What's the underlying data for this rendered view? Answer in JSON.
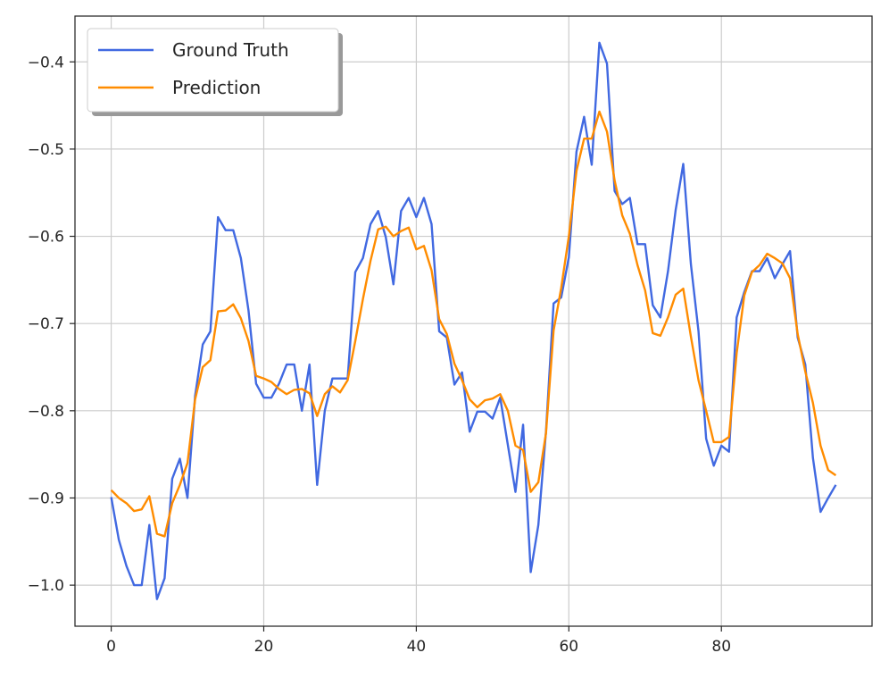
{
  "chart_data": {
    "type": "line",
    "title": "",
    "xlabel": "",
    "ylabel": "",
    "xlim": [
      -4.75,
      99.75
    ],
    "ylim": [
      -1.047,
      -0.3475
    ],
    "grid": true,
    "legend": {
      "placement": "top-left",
      "shadow": true
    },
    "x_ticks": [
      0,
      20,
      40,
      60,
      80
    ],
    "x_tick_labels": [
      "0",
      "20",
      "40",
      "60",
      "80"
    ],
    "y_ticks": [
      -1.0,
      -0.9,
      -0.8,
      -0.7,
      -0.6,
      -0.5,
      -0.4
    ],
    "y_tick_labels": [
      "−1.0",
      "−0.9",
      "−0.8",
      "−0.7",
      "−0.6",
      "−0.5",
      "−0.4"
    ],
    "x": [
      0,
      1,
      2,
      3,
      4,
      5,
      6,
      7,
      8,
      9,
      10,
      11,
      12,
      13,
      14,
      15,
      16,
      17,
      18,
      19,
      20,
      21,
      22,
      23,
      24,
      25,
      26,
      27,
      28,
      29,
      30,
      31,
      32,
      33,
      34,
      35,
      36,
      37,
      38,
      39,
      40,
      41,
      42,
      43,
      44,
      45,
      46,
      47,
      48,
      49,
      50,
      51,
      52,
      53,
      54,
      55,
      56,
      57,
      58,
      59,
      60,
      61,
      62,
      63,
      64,
      65,
      66,
      67,
      68,
      69,
      70,
      71,
      72,
      73,
      74,
      75,
      76,
      77,
      78,
      79,
      80,
      81,
      82,
      83,
      84,
      85,
      86,
      87,
      88,
      89,
      90,
      91,
      92,
      93,
      94,
      95
    ],
    "series": [
      {
        "name": "Ground Truth",
        "color": "#4169e1",
        "values": [
          -0.899,
          -0.948,
          -0.978,
          -1.0,
          -1.0,
          -0.931,
          -1.016,
          -0.992,
          -0.878,
          -0.855,
          -0.9,
          -0.783,
          -0.724,
          -0.709,
          -0.578,
          -0.593,
          -0.593,
          -0.625,
          -0.685,
          -0.769,
          -0.785,
          -0.785,
          -0.769,
          -0.747,
          -0.747,
          -0.8,
          -0.747,
          -0.885,
          -0.8,
          -0.763,
          -0.763,
          -0.763,
          -0.641,
          -0.625,
          -0.586,
          -0.571,
          -0.601,
          -0.655,
          -0.571,
          -0.556,
          -0.578,
          -0.556,
          -0.586,
          -0.709,
          -0.716,
          -0.77,
          -0.756,
          -0.824,
          -0.801,
          -0.801,
          -0.809,
          -0.785,
          -0.839,
          -0.893,
          -0.816,
          -0.985,
          -0.931,
          -0.824,
          -0.677,
          -0.67,
          -0.624,
          -0.503,
          -0.463,
          -0.518,
          -0.378,
          -0.402,
          -0.548,
          -0.563,
          -0.556,
          -0.609,
          -0.609,
          -0.679,
          -0.693,
          -0.64,
          -0.57,
          -0.517,
          -0.632,
          -0.709,
          -0.832,
          -0.863,
          -0.84,
          -0.847,
          -0.693,
          -0.664,
          -0.64,
          -0.64,
          -0.625,
          -0.648,
          -0.632,
          -0.617,
          -0.716,
          -0.747,
          -0.854,
          -0.916,
          -0.9,
          -0.885
        ]
      },
      {
        "name": "Prediction",
        "color": "#ff8c00",
        "values": [
          -0.891,
          -0.9,
          -0.906,
          -0.915,
          -0.913,
          -0.898,
          -0.941,
          -0.944,
          -0.906,
          -0.885,
          -0.86,
          -0.787,
          -0.75,
          -0.742,
          -0.686,
          -0.685,
          -0.678,
          -0.694,
          -0.72,
          -0.76,
          -0.763,
          -0.767,
          -0.775,
          -0.781,
          -0.776,
          -0.775,
          -0.78,
          -0.806,
          -0.781,
          -0.772,
          -0.779,
          -0.765,
          -0.72,
          -0.672,
          -0.628,
          -0.592,
          -0.589,
          -0.6,
          -0.594,
          -0.59,
          -0.615,
          -0.611,
          -0.639,
          -0.695,
          -0.712,
          -0.746,
          -0.765,
          -0.787,
          -0.796,
          -0.788,
          -0.786,
          -0.781,
          -0.8,
          -0.84,
          -0.845,
          -0.893,
          -0.882,
          -0.826,
          -0.708,
          -0.659,
          -0.6,
          -0.525,
          -0.488,
          -0.488,
          -0.457,
          -0.48,
          -0.536,
          -0.576,
          -0.597,
          -0.633,
          -0.662,
          -0.711,
          -0.714,
          -0.693,
          -0.667,
          -0.66,
          -0.715,
          -0.765,
          -0.8,
          -0.836,
          -0.836,
          -0.83,
          -0.734,
          -0.668,
          -0.641,
          -0.633,
          -0.62,
          -0.625,
          -0.631,
          -0.648,
          -0.712,
          -0.755,
          -0.791,
          -0.84,
          -0.868,
          -0.874
        ]
      }
    ]
  }
}
